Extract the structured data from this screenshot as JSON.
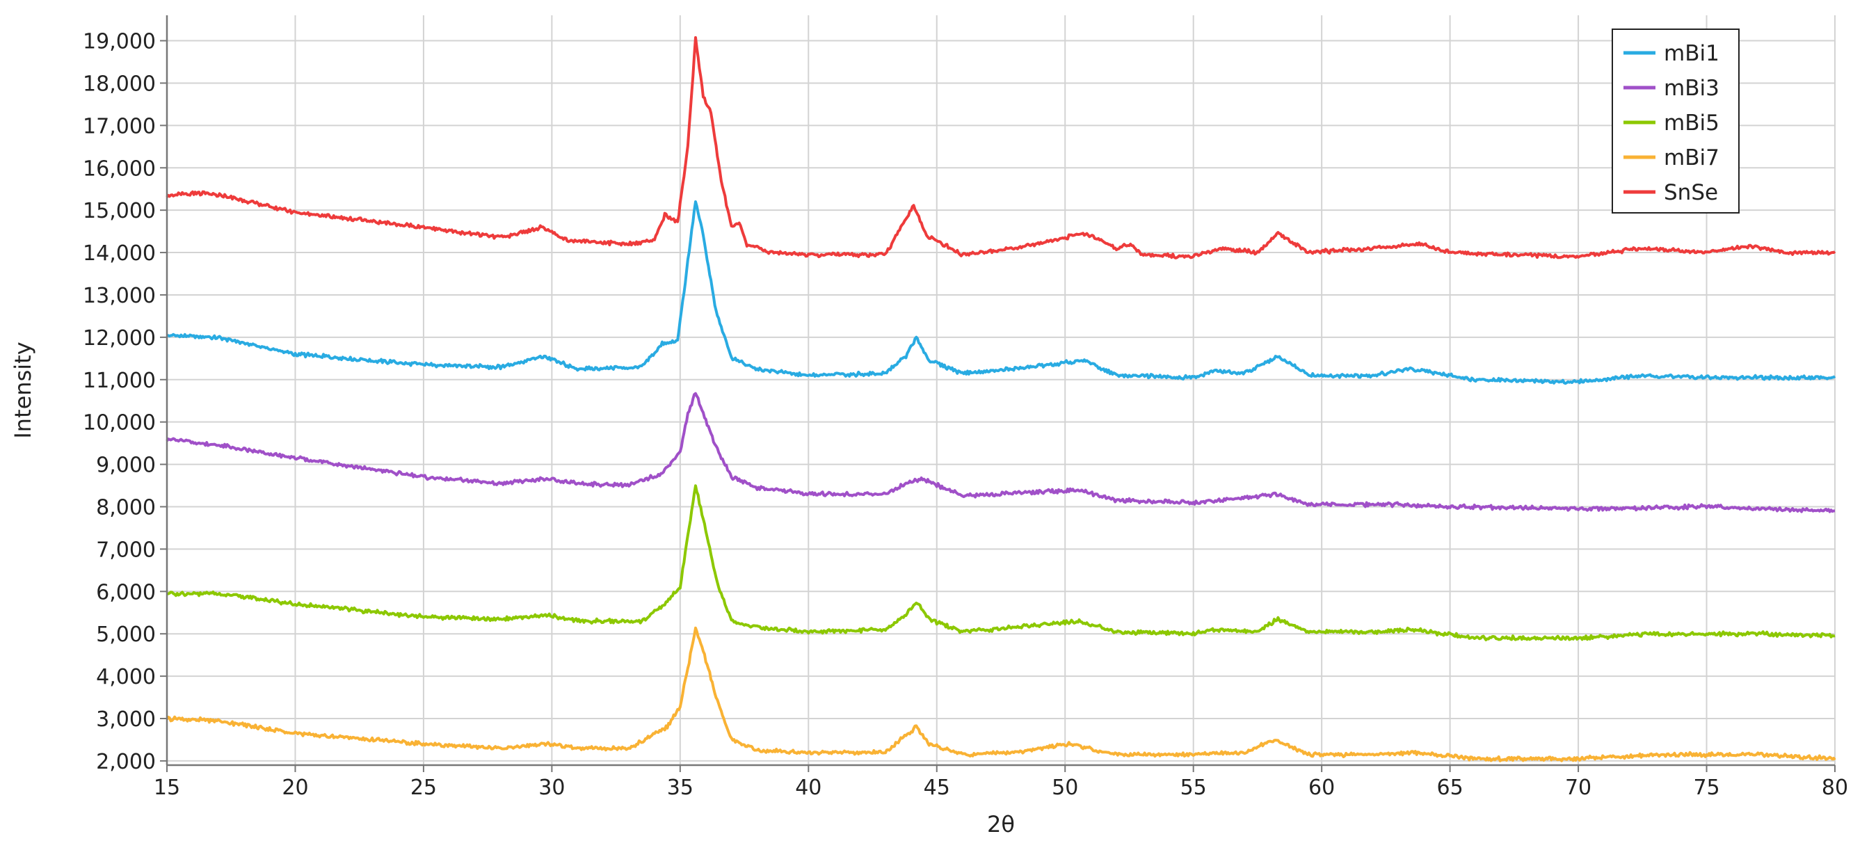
{
  "chart_data": {
    "type": "line",
    "title": "",
    "xlabel": "2θ",
    "ylabel": "Intensity",
    "xlim": [
      15,
      80
    ],
    "ylim": [
      1900,
      19600
    ],
    "grid": true,
    "legend_position": "top-right",
    "x_ticks": [
      15,
      20,
      25,
      30,
      35,
      40,
      45,
      50,
      55,
      60,
      65,
      70,
      75,
      80
    ],
    "x_tick_labels": [
      "15",
      "20",
      "25",
      "30",
      "35",
      "40",
      "45",
      "50",
      "55",
      "60",
      "65",
      "70",
      "75",
      "80"
    ],
    "y_ticks": [
      2000,
      3000,
      4000,
      5000,
      6000,
      7000,
      8000,
      9000,
      10000,
      11000,
      12000,
      13000,
      14000,
      15000,
      16000,
      17000,
      18000,
      19000
    ],
    "y_tick_labels": [
      "2,000",
      "3,000",
      "4,000",
      "5,000",
      "6,000",
      "7,000",
      "8,000",
      "9,000",
      "10,000",
      "11,000",
      "12,000",
      "13,000",
      "14,000",
      "15,000",
      "16,000",
      "17,000",
      "18,000",
      "19,000"
    ],
    "series": [
      {
        "name": "mBi1",
        "color": "#29abe2",
        "x": [
          15,
          17,
          20,
          25,
          28,
          29.7,
          31,
          33.5,
          34.3,
          34.9,
          35.3,
          35.6,
          35.9,
          36.4,
          37,
          38,
          40,
          43,
          43.8,
          44.2,
          44.7,
          46,
          48,
          50.8,
          52,
          55,
          55.8,
          57,
          58.3,
          59.5,
          62,
          63.5,
          66,
          70,
          72.5,
          75,
          80
        ],
        "y": [
          12050,
          12000,
          11600,
          11350,
          11300,
          11550,
          11250,
          11300,
          11850,
          11900,
          13800,
          15200,
          14400,
          12600,
          11500,
          11250,
          11100,
          11150,
          11550,
          12000,
          11450,
          11150,
          11250,
          11450,
          11100,
          11050,
          11200,
          11150,
          11550,
          11100,
          11100,
          11250,
          11000,
          10950,
          11100,
          11050,
          11050
        ]
      },
      {
        "name": "mBi3",
        "color": "#a050c8",
        "x": [
          15,
          17,
          20,
          25,
          28,
          29.7,
          31,
          33,
          34.3,
          35,
          35.3,
          35.6,
          35.9,
          36.4,
          37,
          38,
          40,
          43,
          44,
          44.5,
          46,
          50.5,
          52,
          55,
          57,
          58.2,
          59.5,
          63,
          65,
          70,
          75,
          80
        ],
        "y": [
          9600,
          9450,
          9150,
          8700,
          8550,
          8650,
          8550,
          8500,
          8800,
          9300,
          10200,
          10700,
          10200,
          9400,
          8700,
          8450,
          8300,
          8300,
          8600,
          8650,
          8250,
          8400,
          8150,
          8100,
          8200,
          8300,
          8050,
          8050,
          8000,
          7950,
          8000,
          7900
        ]
      },
      {
        "name": "mBi5",
        "color": "#8cc800",
        "x": [
          15,
          17,
          20,
          25,
          28,
          29.8,
          31,
          33.5,
          34.3,
          35,
          35.3,
          35.6,
          35.9,
          36.4,
          37,
          38,
          40,
          43,
          43.8,
          44.2,
          44.7,
          46,
          48,
          50.5,
          52,
          55,
          56,
          57.5,
          58.3,
          59.5,
          62,
          63.5,
          66,
          70,
          73,
          77,
          80
        ],
        "y": [
          5950,
          5950,
          5700,
          5400,
          5350,
          5450,
          5300,
          5300,
          5650,
          6100,
          7300,
          8500,
          7700,
          6300,
          5300,
          5150,
          5050,
          5100,
          5450,
          5750,
          5350,
          5050,
          5150,
          5300,
          5050,
          5000,
          5100,
          5050,
          5350,
          5050,
          5050,
          5100,
          4900,
          4900,
          5000,
          5000,
          4950
        ]
      },
      {
        "name": "mBi7",
        "color": "#f9b234",
        "x": [
          15,
          17,
          20,
          25,
          28,
          29.8,
          31,
          33,
          34.5,
          35,
          35.3,
          35.6,
          35.9,
          36.4,
          37,
          38,
          40,
          43,
          43.8,
          44.2,
          44.7,
          46,
          48,
          50.2,
          52,
          55,
          57,
          58.2,
          59.5,
          62,
          63.5,
          66,
          70,
          73,
          77,
          80
        ],
        "y": [
          3000,
          2950,
          2650,
          2400,
          2300,
          2400,
          2300,
          2300,
          2800,
          3300,
          4200,
          5100,
          4600,
          3500,
          2500,
          2250,
          2200,
          2200,
          2600,
          2800,
          2400,
          2150,
          2200,
          2400,
          2150,
          2150,
          2200,
          2500,
          2150,
          2150,
          2200,
          2050,
          2050,
          2150,
          2150,
          2050
        ]
      },
      {
        "name": "SnSe",
        "color": "#ee3b3b",
        "x": [
          15,
          16.5,
          17.5,
          20,
          25,
          28,
          29.6,
          30.5,
          33,
          34,
          34.4,
          34.9,
          35.3,
          35.6,
          35.9,
          36.2,
          36.6,
          37,
          37.3,
          37.6,
          38.5,
          40,
          43,
          43.7,
          44.1,
          44.6,
          46,
          48,
          50.8,
          52,
          52.6,
          53,
          55,
          56,
          57.5,
          58.3,
          59.5,
          62,
          63.8,
          65,
          70,
          72.5,
          75,
          76.7,
          78,
          80
        ],
        "y": [
          15350,
          15400,
          15300,
          14950,
          14600,
          14350,
          14600,
          14300,
          14200,
          14300,
          14900,
          14700,
          16500,
          19050,
          17700,
          17300,
          15700,
          14600,
          14700,
          14200,
          14000,
          13950,
          13950,
          14700,
          15100,
          14400,
          13950,
          14100,
          14450,
          14100,
          14200,
          13950,
          13900,
          14100,
          14000,
          14450,
          14000,
          14100,
          14200,
          14000,
          13900,
          14100,
          14000,
          14150,
          14000,
          14000
        ]
      }
    ]
  }
}
